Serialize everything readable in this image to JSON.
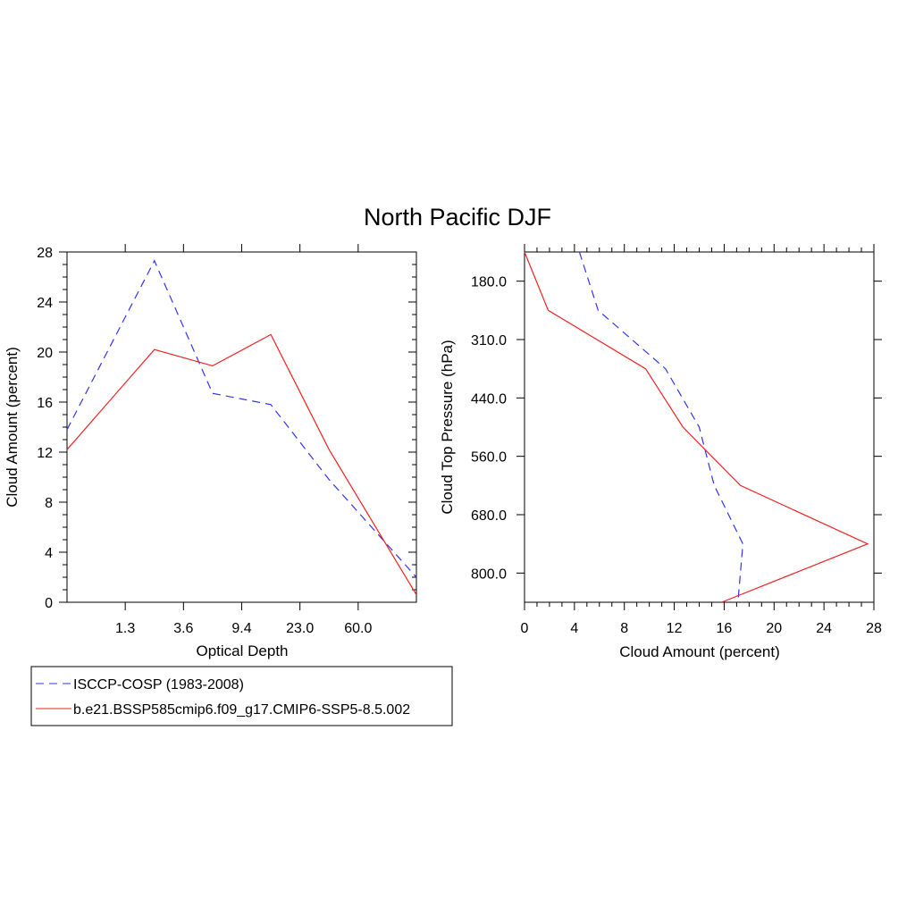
{
  "title": "North Pacific DJF",
  "colors": {
    "obs": "#3333ee",
    "model": "#ee2222"
  },
  "legend": {
    "items": [
      {
        "label": "ISCCP-COSP (1983-2008)",
        "color": "#3333ee",
        "dash": true
      },
      {
        "label": "b.e21.BSSP585cmip6.f09_g17.CMIP6-SSP5-8.5.002",
        "color": "#ee2222",
        "dash": false
      }
    ]
  },
  "chart_data": [
    {
      "type": "line",
      "xlabel": "Optical Depth",
      "ylabel": "Cloud Amount (percent)",
      "ylim": [
        0,
        28
      ],
      "yticks": [
        "0",
        "4",
        "8",
        "12",
        "16",
        "20",
        "24",
        "28"
      ],
      "x_tick_labels": [
        "1.3",
        "3.6",
        "9.4",
        "23.0",
        "60.0"
      ],
      "series": [
        {
          "name": "ISCCP-COSP (1983-2008)",
          "values": [
            13.8,
            27.3,
            16.7,
            15.8,
            9.8,
            2.0
          ]
        },
        {
          "name": "b.e21.BSSP585cmip6.f09_g17.CMIP6-SSP5-8.5.002",
          "values": [
            12.2,
            20.2,
            18.9,
            21.4,
            12.2,
            0.6
          ]
        }
      ]
    },
    {
      "type": "line",
      "xlabel": "Cloud Amount (percent)",
      "ylabel": "Cloud Top Pressure (hPa)",
      "xlim": [
        0,
        28
      ],
      "xticks": [
        "0",
        "4",
        "8",
        "12",
        "16",
        "20",
        "24",
        "28"
      ],
      "y_tick_labels": [
        "180.0",
        "310.0",
        "440.0",
        "560.0",
        "680.0",
        "800.0"
      ],
      "series": [
        {
          "name": "ISCCP-COSP (1983-2008)",
          "values": [
            4.4,
            5.9,
            11.3,
            14.0,
            15.2,
            17.5,
            17.1
          ]
        },
        {
          "name": "b.e21.BSSP585cmip6.f09_g17.CMIP6-SSP5-8.5.002",
          "values": [
            0.0,
            1.9,
            9.7,
            12.7,
            17.3,
            27.5,
            15.8
          ]
        }
      ]
    }
  ]
}
